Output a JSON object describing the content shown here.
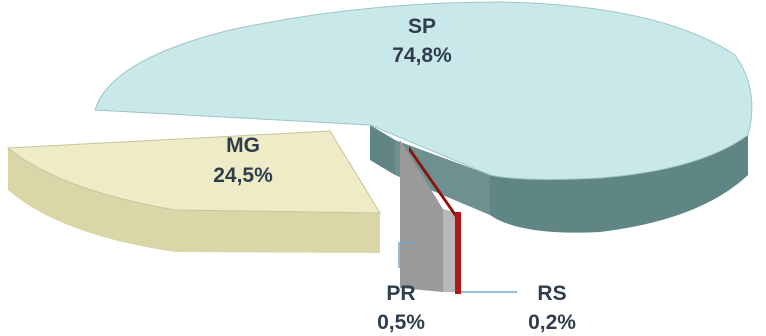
{
  "chart_data": {
    "type": "pie",
    "style": "3d-exploded",
    "slices": [
      {
        "name": "SP",
        "value": 74.8,
        "value_label": "74,8%",
        "color": "#c9e8ea",
        "side_color": "#5f8584"
      },
      {
        "name": "MG",
        "value": 24.5,
        "value_label": "24,5%",
        "color": "#eeecc6",
        "side_color": "#d9d6a8"
      },
      {
        "name": "PR",
        "value": 0.5,
        "value_label": "0,5%",
        "color": "#9a9a9a",
        "side_color": "#b8b8b8"
      },
      {
        "name": "RS",
        "value": 0.2,
        "value_label": "0,2%",
        "color": "#b01818",
        "side_color": "#b01818"
      }
    ]
  }
}
